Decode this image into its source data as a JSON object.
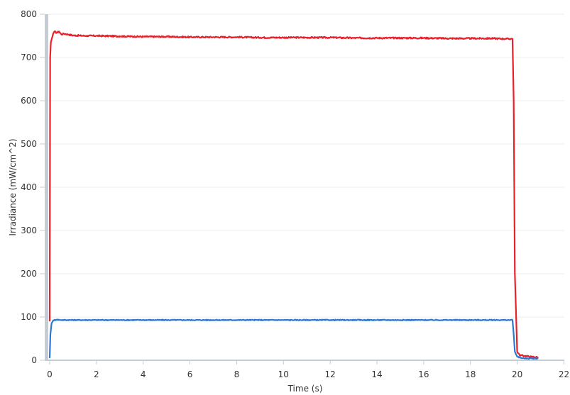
{
  "chart_data": {
    "type": "line",
    "title": "",
    "xlabel": "Time (s)",
    "ylabel": "Irradiance (mW/cm^2)",
    "xlim": [
      0,
      22
    ],
    "ylim": [
      0,
      800
    ],
    "x_ticks": [
      0,
      2,
      4,
      6,
      8,
      10,
      12,
      14,
      16,
      18,
      20,
      22
    ],
    "y_ticks": [
      0,
      100,
      200,
      300,
      400,
      500,
      600,
      700,
      800
    ],
    "x_tick_labels": [
      "0",
      "2",
      "4",
      "6",
      "8",
      "10",
      "12",
      "14",
      "16",
      "18",
      "20",
      "22"
    ],
    "y_tick_labels": [
      "0",
      "100",
      "200",
      "300",
      "400",
      "500",
      "600",
      "700",
      "800"
    ],
    "grid": true,
    "legend": "none",
    "series": [
      {
        "color": "#e8212b",
        "x": [
          0.0,
          0.02,
          0.05,
          0.1,
          0.15,
          0.2,
          0.3,
          0.4,
          0.5,
          0.6,
          0.8,
          1.0,
          1.5,
          2,
          3,
          4,
          5,
          6,
          7,
          8,
          9,
          10,
          11,
          12,
          13,
          14,
          15,
          16,
          17,
          18,
          19,
          19.5,
          19.8,
          19.85,
          19.9,
          20.0,
          20.1,
          20.3,
          20.6,
          20.9
        ],
        "y": [
          90,
          700,
          735,
          745,
          755,
          760,
          757,
          760,
          753,
          755,
          753,
          751,
          750,
          750,
          749,
          748,
          748,
          747,
          747,
          747,
          746,
          746,
          746,
          746,
          745,
          745,
          745,
          745,
          744,
          744,
          744,
          743,
          743,
          600,
          200,
          20,
          12,
          10,
          8,
          7
        ]
      },
      {
        "color": "#2f77d1",
        "x": [
          0.0,
          0.03,
          0.08,
          0.15,
          0.3,
          0.5,
          1,
          2,
          3,
          4,
          5,
          6,
          7,
          8,
          9,
          10,
          11,
          12,
          13,
          14,
          15,
          16,
          17,
          18,
          19,
          19.5,
          19.8,
          19.85,
          19.9,
          20.0,
          20.2,
          20.5,
          20.9
        ],
        "y": [
          5,
          60,
          85,
          92,
          94,
          93,
          93,
          93,
          93,
          93,
          93,
          93,
          93,
          93,
          93,
          93,
          93,
          93,
          93,
          93,
          93,
          93,
          93,
          93,
          93,
          93,
          93,
          60,
          20,
          8,
          5,
          4,
          4
        ]
      }
    ]
  }
}
